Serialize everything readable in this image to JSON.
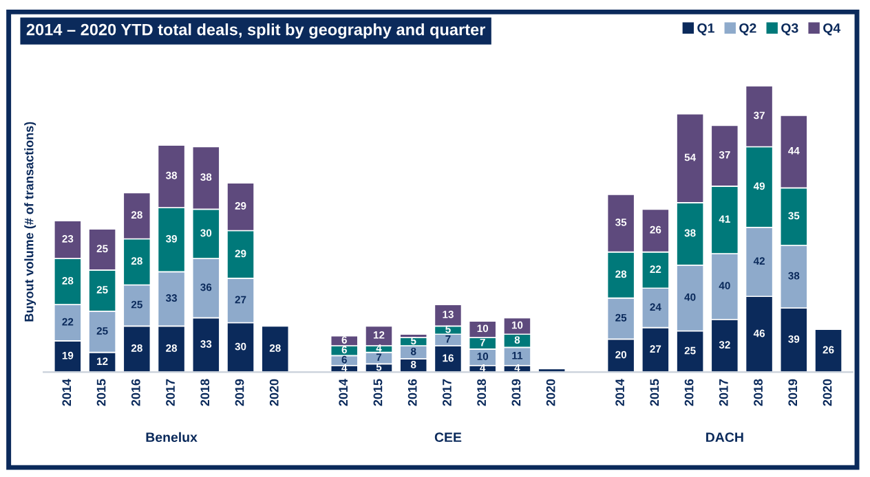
{
  "chart_data": {
    "type": "bar",
    "stacked": true,
    "title": "2014 – 2020 YTD total deals, split by geography and quarter",
    "ylabel": "Buyout volume (# of transactions)",
    "categories": [
      "2014",
      "2015",
      "2016",
      "2017",
      "2018",
      "2019",
      "2020",
      null,
      "2014",
      "2015",
      "2016",
      "2017",
      "2018",
      "2019",
      "2020",
      null,
      "2014",
      "2015",
      "2016",
      "2017",
      "2018",
      "2019",
      "2020"
    ],
    "series": [
      {
        "name": "Q1",
        "color": "#0b2a5b",
        "values": [
          19,
          12,
          28,
          28,
          33,
          30,
          28,
          null,
          4,
          5,
          8,
          16,
          4,
          4,
          2,
          null,
          20,
          27,
          25,
          32,
          46,
          39,
          26
        ],
        "value_labels": [
          "19",
          "12",
          "28",
          "28",
          "33",
          "30",
          "28",
          null,
          "4",
          "5",
          "8",
          "16",
          "4",
          "4",
          null,
          null,
          "20",
          "27",
          "25",
          "32",
          "46",
          "39",
          "26"
        ]
      },
      {
        "name": "Q2",
        "color": "#8eaacb",
        "values": [
          22,
          25,
          25,
          33,
          36,
          27,
          null,
          null,
          6,
          7,
          8,
          7,
          10,
          11,
          null,
          null,
          25,
          24,
          40,
          40,
          42,
          38,
          null
        ]
      },
      {
        "name": "Q3",
        "color": "#00797a",
        "values": [
          28,
          25,
          28,
          39,
          30,
          29,
          null,
          null,
          6,
          4,
          5,
          5,
          7,
          8,
          null,
          null,
          28,
          22,
          38,
          41,
          49,
          35,
          null
        ]
      },
      {
        "name": "Q4",
        "color": "#5e4a7d",
        "values": [
          23,
          25,
          28,
          38,
          38,
          29,
          null,
          null,
          6,
          12,
          2,
          13,
          10,
          10,
          null,
          null,
          35,
          26,
          54,
          37,
          37,
          44,
          null
        ],
        "value_labels": [
          "23",
          "25",
          "28",
          "38",
          "38",
          "29",
          null,
          null,
          "6",
          "12",
          null,
          "13",
          "10",
          "10",
          null,
          null,
          "35",
          "26",
          "54",
          "37",
          "37",
          "44",
          null
        ]
      }
    ],
    "annotations": [
      "Benelux",
      "CEE",
      "DACH"
    ],
    "data_labels": true,
    "legend": "top right",
    "grid": false
  }
}
